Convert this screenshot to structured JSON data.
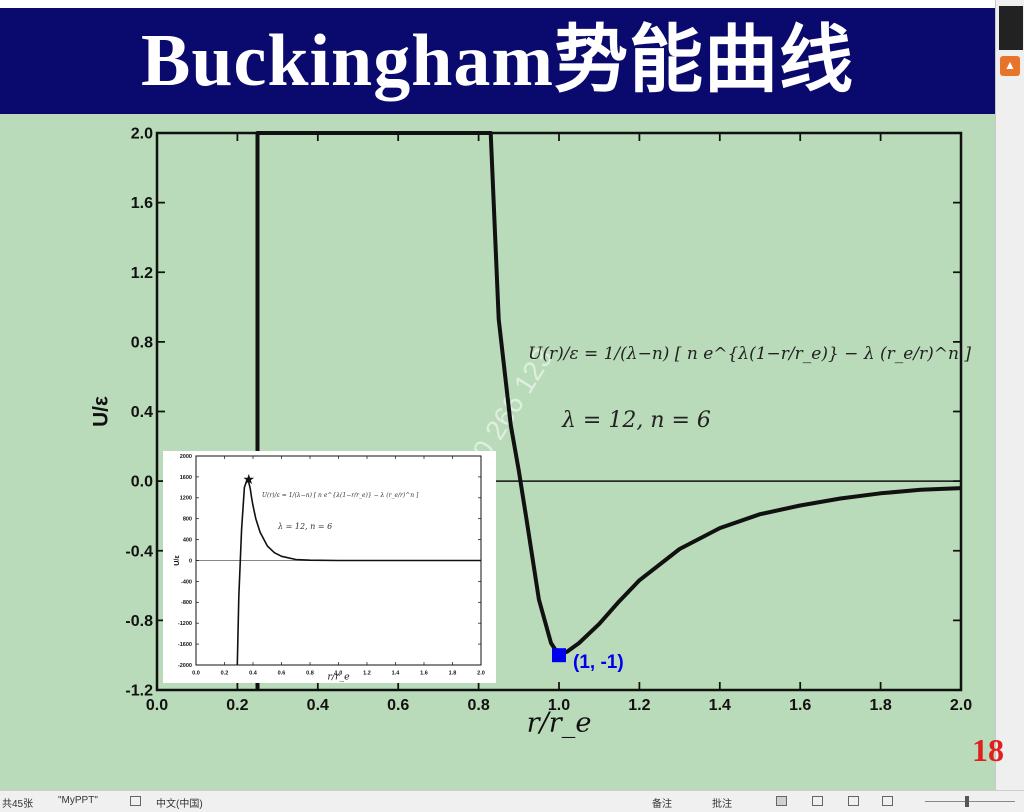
{
  "slide": {
    "title": "Buckingham势能曲线",
    "number": "18",
    "watermark": "86156510 266 123",
    "colors": {
      "title_bar": "#0a0a6e",
      "background": "#b9dbb9",
      "marker": "#0000ee",
      "slide_number": "#e02020"
    }
  },
  "statusbar": {
    "slide_count": "共45张",
    "theme": "\"MyPPT\"",
    "language": "中文(中国)",
    "notes_label": "备注",
    "comments_label": "批注"
  },
  "chart_data": [
    {
      "type": "line",
      "ylabel": "U/ε",
      "xlabel": "r/r_e",
      "xlim": [
        0.0,
        2.0
      ],
      "ylim": [
        -1.2,
        2.0
      ],
      "xticks": [
        "0.0",
        "0.2",
        "0.4",
        "0.6",
        "0.8",
        "1.0",
        "1.2",
        "1.4",
        "1.6",
        "1.8",
        "2.0"
      ],
      "yticks": [
        "2.0",
        "1.6",
        "1.2",
        "0.8",
        "0.4",
        "0.0",
        "-0.4",
        "-0.8",
        "-1.2"
      ],
      "formula": "U(r)/ε = 1/(λ−n) [ n e^{λ(1−r/r_e)} − λ (r_e/r)^n ]",
      "params": "λ = 12,    n = 6",
      "lambda": 12,
      "n": 6,
      "x": [
        0.25,
        0.25,
        0.83,
        0.85,
        0.88,
        0.9,
        0.92,
        0.95,
        0.98,
        1.0,
        1.02,
        1.05,
        1.1,
        1.15,
        1.2,
        1.3,
        1.4,
        1.5,
        1.6,
        1.7,
        1.8,
        1.9,
        2.0
      ],
      "y": [
        -1.2,
        2.0,
        2.0,
        0.93,
        0.32,
        0.06,
        -0.23,
        -0.68,
        -0.93,
        -1.0,
        -0.98,
        -0.93,
        -0.82,
        -0.69,
        -0.57,
        -0.39,
        -0.27,
        -0.19,
        -0.14,
        -0.1,
        -0.07,
        -0.05,
        -0.04
      ],
      "annotation": {
        "x": 1.0,
        "y": -1.0,
        "label": "(1, -1)"
      }
    },
    {
      "type": "line",
      "role": "inset",
      "ylabel": "U/ε",
      "xlabel": "r/r_e",
      "xlim": [
        0.0,
        2.0
      ],
      "ylim": [
        -2000,
        2000
      ],
      "xticks": [
        "0.0",
        "0.2",
        "0.4",
        "0.6",
        "0.8",
        "1.0",
        "1.2",
        "1.4",
        "1.6",
        "1.8",
        "2.0"
      ],
      "yticks": [
        "2000",
        "1600",
        "1200",
        "800",
        "400",
        "0",
        "-400",
        "-800",
        "-1200",
        "-1600",
        "-2000"
      ],
      "formula": "U(r)/ε = 1/(λ−n) [ n e^{λ(1−r/r_e)} − λ (r_e/r)^n ]",
      "params": "λ = 12,    n = 6",
      "x": [
        0.29,
        0.3,
        0.32,
        0.34,
        0.36,
        0.37,
        0.38,
        0.39,
        0.4,
        0.42,
        0.45,
        0.5,
        0.55,
        0.6,
        0.7,
        0.8,
        1.0,
        1.5,
        2.0
      ],
      "y": [
        -2000,
        -700,
        600,
        1400,
        1560,
        1500,
        1380,
        1200,
        1050,
        800,
        540,
        280,
        150,
        80,
        20,
        5,
        0,
        0,
        0
      ],
      "annotation": {
        "x": 0.37,
        "y": 1560,
        "label": "★"
      }
    }
  ]
}
